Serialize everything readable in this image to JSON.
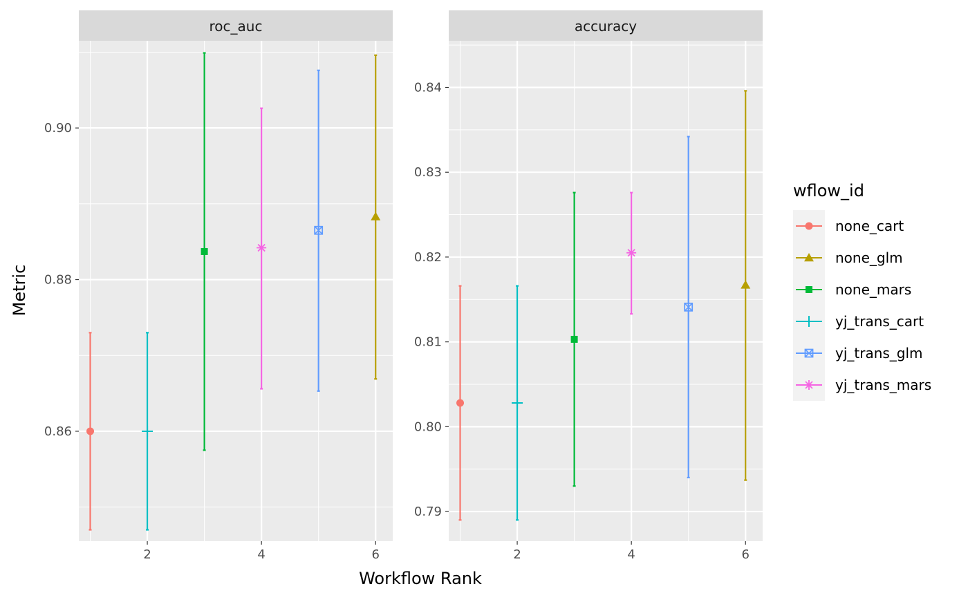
{
  "chart_data": {
    "type": "scatter",
    "subtype": "point-with-errorbars, faceted",
    "xlabel": "Workflow Rank",
    "ylabel": "Metric",
    "legend": {
      "title": "wflow_id",
      "placement": "right",
      "entries": [
        {
          "name": "none_cart",
          "color": "#F8766D",
          "shape": "circle"
        },
        {
          "name": "none_glm",
          "color": "#B79F00",
          "shape": "triangle"
        },
        {
          "name": "none_mars",
          "color": "#00BA38",
          "shape": "square"
        },
        {
          "name": "yj_trans_cart",
          "color": "#00BFC4",
          "shape": "plus"
        },
        {
          "name": "yj_trans_glm",
          "color": "#619CFF",
          "shape": "square-x"
        },
        {
          "name": "yj_trans_mars",
          "color": "#F564E3",
          "shape": "asterisk"
        }
      ]
    },
    "panels": [
      {
        "strip_label": "roc_auc",
        "xlim": [
          0.8,
          6.3
        ],
        "ylim": [
          0.8455,
          0.9115
        ],
        "xticks": [
          2,
          4,
          6
        ],
        "xtick_labels": [
          "2",
          "4",
          "6"
        ],
        "yticks": [
          0.86,
          0.88,
          0.9
        ],
        "ytick_labels": [
          "0.86",
          "0.88",
          "0.90"
        ],
        "grid": true,
        "points": [
          {
            "series": "none_cart",
            "x": 1,
            "y": 0.86,
            "lower": 0.847,
            "upper": 0.873
          },
          {
            "series": "yj_trans_cart",
            "x": 2,
            "y": 0.86,
            "lower": 0.847,
            "upper": 0.873
          },
          {
            "series": "none_mars",
            "x": 3,
            "y": 0.8837,
            "lower": 0.8575,
            "upper": 0.9099
          },
          {
            "series": "yj_trans_mars",
            "x": 4,
            "y": 0.8842,
            "lower": 0.8656,
            "upper": 0.9026
          },
          {
            "series": "yj_trans_glm",
            "x": 5,
            "y": 0.8865,
            "lower": 0.8653,
            "upper": 0.9076
          },
          {
            "series": "none_glm",
            "x": 6,
            "y": 0.8883,
            "lower": 0.8669,
            "upper": 0.9096
          }
        ]
      },
      {
        "strip_label": "accuracy",
        "xlim": [
          0.8,
          6.3
        ],
        "ylim": [
          0.7865,
          0.8455
        ],
        "xticks": [
          2,
          4,
          6
        ],
        "xtick_labels": [
          "2",
          "4",
          "6"
        ],
        "yticks": [
          0.79,
          0.8,
          0.81,
          0.82,
          0.83,
          0.84
        ],
        "ytick_labels": [
          "0.79",
          "0.80",
          "0.81",
          "0.82",
          "0.83",
          "0.84"
        ],
        "grid": true,
        "points": [
          {
            "series": "none_cart",
            "x": 1,
            "y": 0.8028,
            "lower": 0.789,
            "upper": 0.8166
          },
          {
            "series": "yj_trans_cart",
            "x": 2,
            "y": 0.8028,
            "lower": 0.789,
            "upper": 0.8166
          },
          {
            "series": "none_mars",
            "x": 3,
            "y": 0.8103,
            "lower": 0.793,
            "upper": 0.8276
          },
          {
            "series": "yj_trans_mars",
            "x": 4,
            "y": 0.8205,
            "lower": 0.8133,
            "upper": 0.8276
          },
          {
            "series": "yj_trans_glm",
            "x": 5,
            "y": 0.8141,
            "lower": 0.794,
            "upper": 0.8342
          },
          {
            "series": "none_glm",
            "x": 6,
            "y": 0.8167,
            "lower": 0.7937,
            "upper": 0.8396
          }
        ]
      }
    ]
  }
}
